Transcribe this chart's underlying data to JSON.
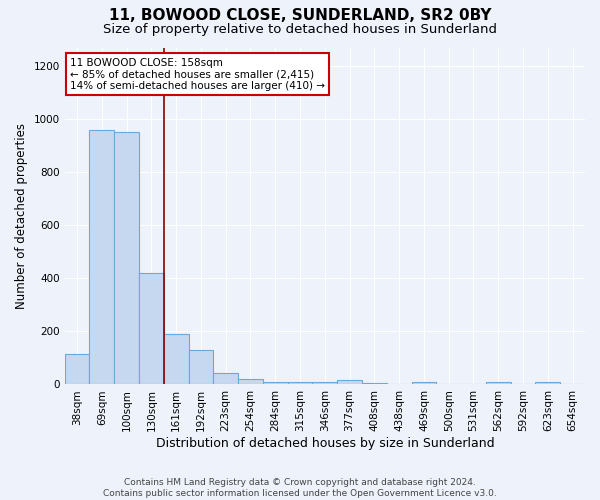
{
  "title1": "11, BOWOOD CLOSE, SUNDERLAND, SR2 0BY",
  "title2": "Size of property relative to detached houses in Sunderland",
  "xlabel": "Distribution of detached houses by size in Sunderland",
  "ylabel": "Number of detached properties",
  "categories": [
    "38sqm",
    "69sqm",
    "100sqm",
    "130sqm",
    "161sqm",
    "192sqm",
    "223sqm",
    "254sqm",
    "284sqm",
    "315sqm",
    "346sqm",
    "377sqm",
    "408sqm",
    "438sqm",
    "469sqm",
    "500sqm",
    "531sqm",
    "562sqm",
    "592sqm",
    "623sqm",
    "654sqm"
  ],
  "values": [
    115,
    960,
    950,
    420,
    190,
    130,
    45,
    20,
    10,
    10,
    10,
    15,
    5,
    0,
    8,
    0,
    0,
    8,
    0,
    8,
    0
  ],
  "bar_color": "#c5d8f0",
  "bar_edge_color": "#6baad8",
  "bar_linewidth": 0.8,
  "red_line_x": 3.5,
  "red_line_color": "#8b0000",
  "annotation_text": "11 BOWOOD CLOSE: 158sqm\n← 85% of detached houses are smaller (2,415)\n14% of semi-detached houses are larger (410) →",
  "annotation_box_color": "white",
  "annotation_box_edge": "#cc0000",
  "ylim": [
    0,
    1270
  ],
  "yticks": [
    0,
    200,
    400,
    600,
    800,
    1000,
    1200
  ],
  "footnote": "Contains HM Land Registry data © Crown copyright and database right 2024.\nContains public sector information licensed under the Open Government Licence v3.0.",
  "background_color": "#edf2fb",
  "plot_bg_color": "#edf2fb",
  "title_fontsize": 11,
  "subtitle_fontsize": 9.5,
  "xlabel_fontsize": 9,
  "ylabel_fontsize": 8.5,
  "tick_fontsize": 7.5,
  "footnote_fontsize": 6.5,
  "grid_color": "#ffffff"
}
